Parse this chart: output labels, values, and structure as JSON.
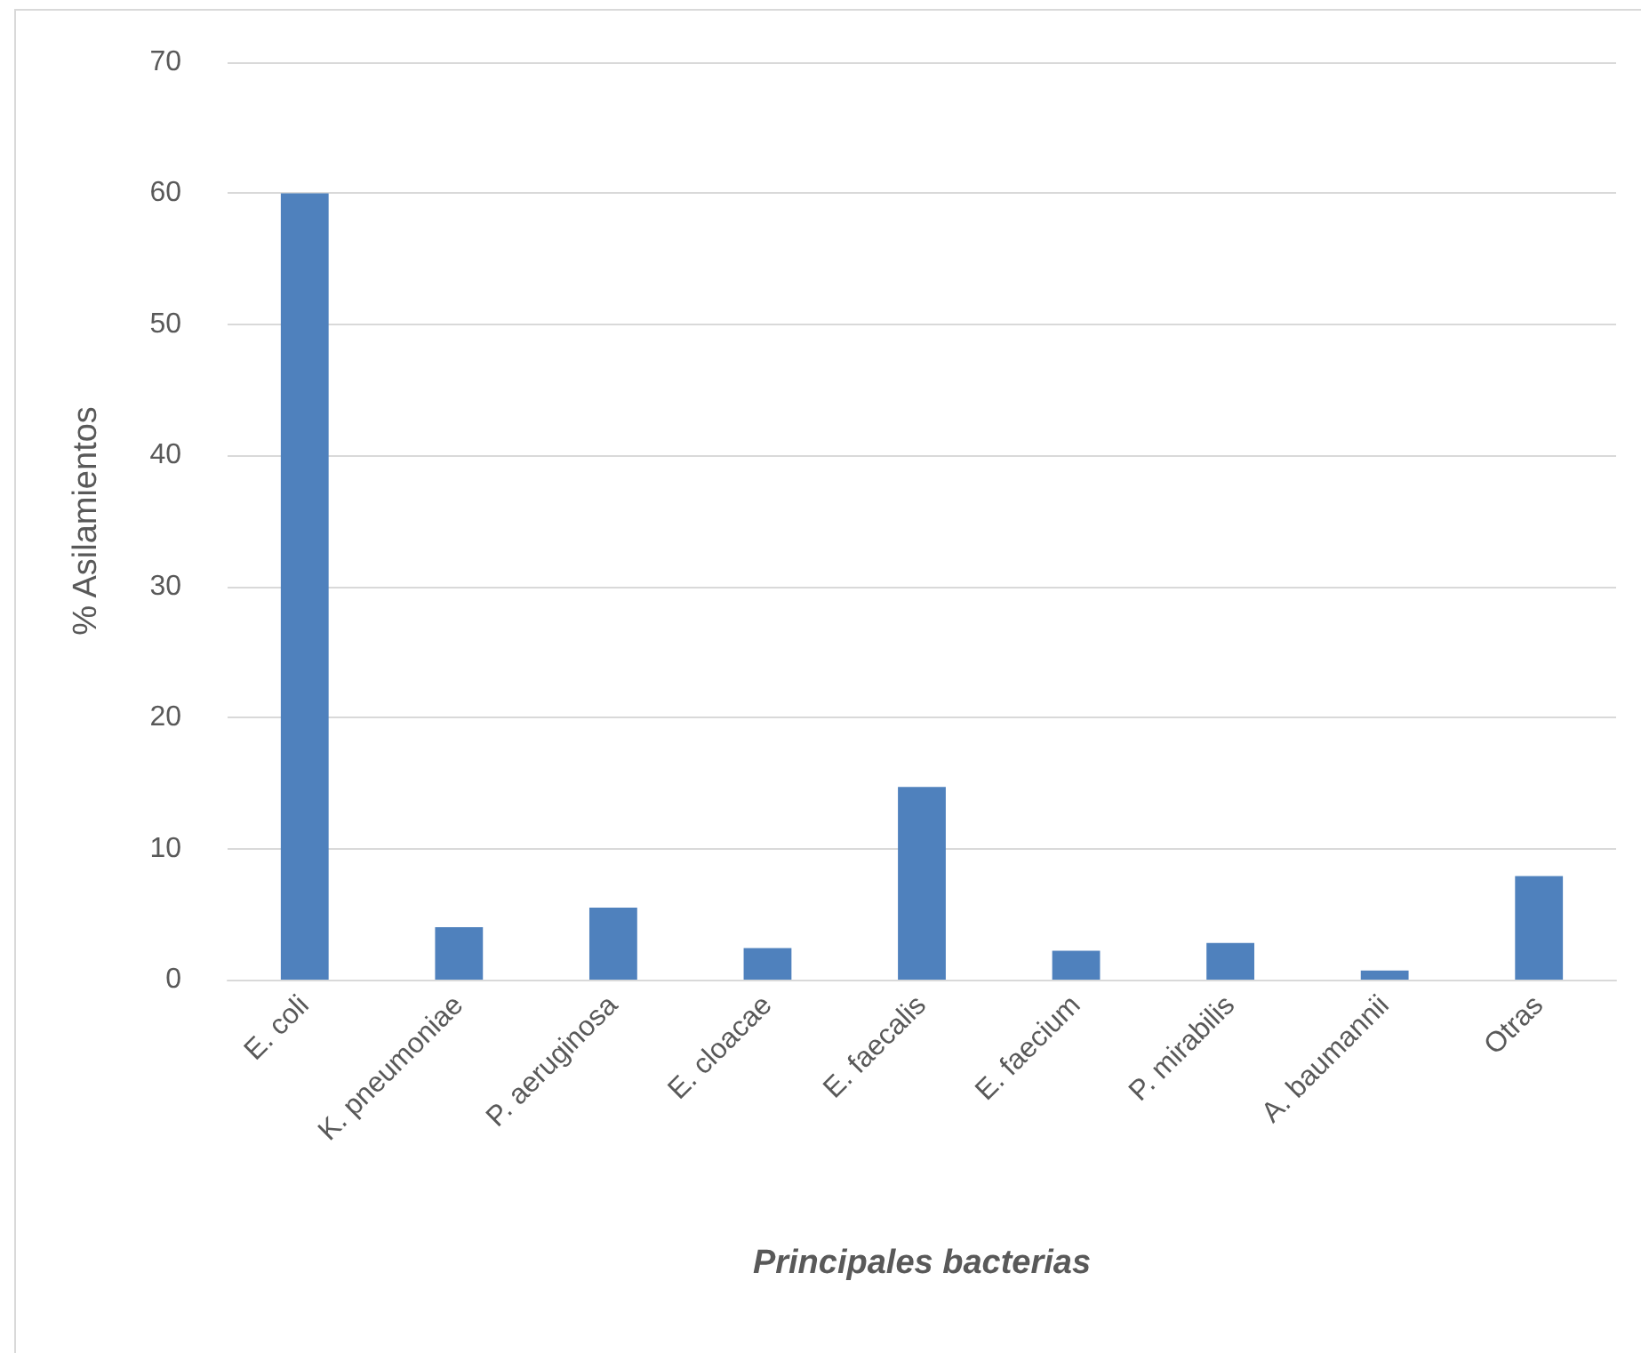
{
  "chart_data": {
    "type": "bar",
    "xlabel": "Principales bacterias",
    "ylabel": "% Asilamientos",
    "categories": [
      "E. coli",
      "K. pneumoniae",
      "P. aeruginosa",
      "E. cloacae",
      "E. faecalis",
      "E. faecium",
      "P. mirabilis",
      "A. baumannii",
      "Otras"
    ],
    "values": [
      60,
      4.0,
      5.5,
      2.4,
      14.7,
      2.2,
      2.8,
      0.7,
      7.9
    ],
    "color": "#4f81bd",
    "ylim": [
      0,
      70
    ],
    "yticks": [
      0,
      10,
      20,
      30,
      40,
      50,
      60,
      70
    ],
    "grid": "y"
  }
}
